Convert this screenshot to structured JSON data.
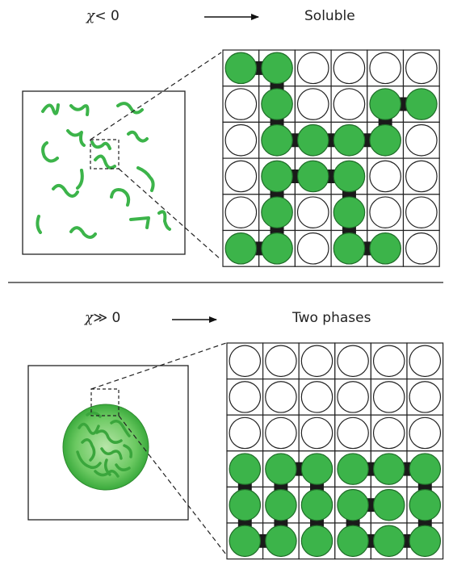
{
  "top_panel": {
    "condition_symbol": "χ",
    "condition_rest": "< 0",
    "result": "Soluble"
  },
  "bottom_panel": {
    "condition_symbol": "χ",
    "condition_rest": "≫ 0",
    "result": "Two phases"
  },
  "colors": {
    "polymer_green": "#3cb44a",
    "bond_black": "#1a1a1a",
    "grid_line": "#222222",
    "droplet_light": "#b8e6a9",
    "droplet_dark": "#3aaa3c"
  },
  "lattice": {
    "rows": 6,
    "cols": 6
  }
}
